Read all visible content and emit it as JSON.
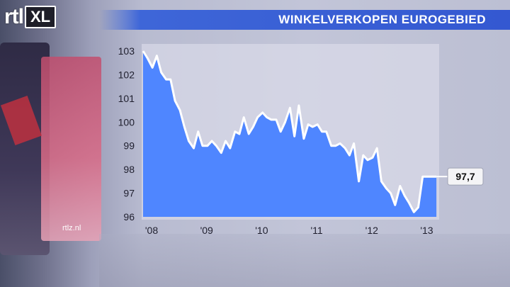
{
  "header": {
    "logo_text": "rtl",
    "logo_badge": "XL",
    "title": "WINKELVERKOPEN EUROGEBIED",
    "accent_color": "#3458d1"
  },
  "footer": {
    "site": "rtlz.nl"
  },
  "chart_data": {
    "type": "area",
    "title": "WINKELVERKOPEN EUROGEBIED",
    "xlabel": "",
    "ylabel": "",
    "ylim": [
      96,
      103
    ],
    "y_ticks": [
      "103",
      "102",
      "101",
      "100",
      "99",
      "98",
      "97",
      "96"
    ],
    "x_ticks": [
      "'08",
      "'09",
      "'10",
      "'11",
      "'12",
      "'13"
    ],
    "x_tick_values": [
      2008,
      2009,
      2010,
      2011,
      2012,
      2013
    ],
    "xlim": [
      2008,
      2013.38
    ],
    "fill_color": "#4f86ff",
    "line_color": "#ffffff",
    "grid": false,
    "end_label": "97,7",
    "series": [
      {
        "x": [
          2008.0,
          2008.08,
          2008.17,
          2008.25,
          2008.33,
          2008.42,
          2008.5,
          2008.58,
          2008.67,
          2008.75,
          2008.83,
          2008.92,
          2009.0,
          2009.08,
          2009.17,
          2009.25,
          2009.33,
          2009.42,
          2009.5,
          2009.58,
          2009.67,
          2009.75,
          2009.83,
          2009.92,
          2010.0,
          2010.08,
          2010.17,
          2010.25,
          2010.33,
          2010.42,
          2010.5,
          2010.58,
          2010.67,
          2010.75,
          2010.83,
          2010.92,
          2011.0,
          2011.08,
          2011.17,
          2011.25,
          2011.33,
          2011.42,
          2011.5,
          2011.58,
          2011.67,
          2011.75,
          2011.83,
          2011.92,
          2012.0,
          2012.08,
          2012.17,
          2012.25,
          2012.33,
          2012.42,
          2012.5,
          2012.58,
          2012.67,
          2012.75,
          2012.83,
          2012.92,
          2013.0,
          2013.08,
          2013.17,
          2013.25,
          2013.33
        ],
        "values": [
          103.0,
          102.7,
          102.3,
          102.8,
          102.1,
          101.8,
          101.8,
          100.9,
          100.5,
          99.8,
          99.2,
          98.9,
          99.6,
          99.0,
          99.0,
          99.2,
          99.0,
          98.7,
          99.2,
          98.9,
          99.6,
          99.5,
          100.2,
          99.5,
          99.8,
          100.2,
          100.4,
          100.2,
          100.1,
          100.1,
          99.6,
          100.0,
          100.6,
          99.4,
          100.7,
          99.3,
          99.9,
          99.8,
          99.9,
          99.6,
          99.6,
          99.0,
          99.0,
          99.1,
          98.9,
          98.6,
          99.1,
          97.5,
          98.6,
          98.4,
          98.5,
          98.9,
          97.5,
          97.2,
          97.0,
          96.5,
          97.3,
          96.9,
          96.6,
          96.2,
          96.4,
          97.7,
          97.7,
          97.7,
          97.7
        ]
      }
    ]
  }
}
